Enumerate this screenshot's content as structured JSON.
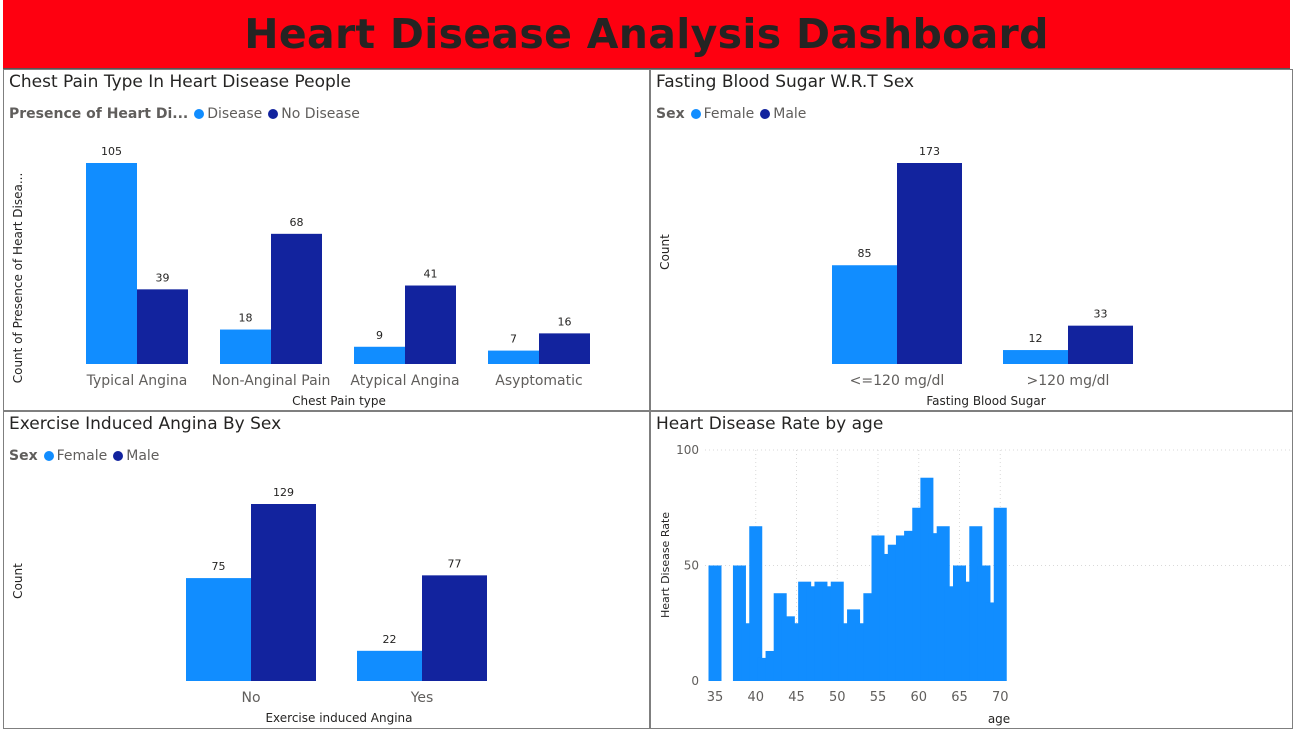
{
  "dashboard": {
    "title": "Heart Disease Analysis Dashboard"
  },
  "colors": {
    "light": "#118dff",
    "dark": "#12239e",
    "banner": "#fe0010"
  },
  "panels": {
    "chest": {
      "title": "Chest Pain Type In Heart Disease People",
      "legend_title": "Presence of Heart Di...",
      "legend": [
        "Disease",
        "No Disease"
      ]
    },
    "fbs": {
      "title": "Fasting Blood Sugar W.R.T Sex",
      "legend_title": "Sex",
      "legend": [
        "Female",
        "Male"
      ]
    },
    "angina": {
      "title": "Exercise Induced Angina By Sex",
      "legend_title": "Sex",
      "legend": [
        "Female",
        "Male"
      ]
    },
    "age": {
      "title": "Heart Disease Rate by age"
    }
  },
  "chart_data": [
    {
      "id": "chest",
      "type": "bar",
      "categories": [
        "Typical Angina",
        "Non-Anginal Pain",
        "Atypical Angina",
        "Asyptomatic"
      ],
      "series": [
        {
          "name": "Disease",
          "values": [
            105,
            18,
            9,
            7
          ]
        },
        {
          "name": "No Disease",
          "values": [
            39,
            68,
            41,
            16
          ]
        }
      ],
      "xlabel": "Chest Pain type",
      "ylabel": "Count of Presence of Heart Disea...",
      "ylim": [
        0,
        105
      ]
    },
    {
      "id": "fbs",
      "type": "bar",
      "categories": [
        "<=120 mg/dl",
        ">120 mg/dl"
      ],
      "series": [
        {
          "name": "Female",
          "values": [
            85,
            12
          ]
        },
        {
          "name": "Male",
          "values": [
            173,
            33
          ]
        }
      ],
      "xlabel": "Fasting Blood Sugar",
      "ylabel": "Count",
      "ylim": [
        0,
        173
      ]
    },
    {
      "id": "angina",
      "type": "bar",
      "categories": [
        "No",
        "Yes"
      ],
      "series": [
        {
          "name": "Female",
          "values": [
            75,
            22
          ]
        },
        {
          "name": "Male",
          "values": [
            129,
            77
          ]
        }
      ],
      "xlabel": "Exercise induced Angina",
      "ylabel": "Count",
      "ylim": [
        0,
        129
      ]
    },
    {
      "id": "age",
      "type": "bar",
      "x": [
        35,
        36,
        37,
        38,
        39,
        40,
        41,
        42,
        43,
        44,
        45,
        46,
        47,
        48,
        49,
        50,
        51,
        52,
        53,
        54,
        55,
        56,
        57,
        58,
        59,
        60,
        61,
        62,
        63,
        64,
        65,
        66,
        67,
        68,
        69,
        70
      ],
      "values": [
        50,
        0,
        0,
        50,
        25,
        67,
        10,
        13,
        38,
        28,
        25,
        43,
        41,
        43,
        41,
        43,
        25,
        31,
        25,
        38,
        63,
        55,
        59,
        63,
        65,
        75,
        88,
        64,
        67,
        41,
        50,
        43,
        67,
        50,
        34,
        75
      ],
      "xticks": [
        35,
        40,
        45,
        50,
        55,
        60,
        65,
        70
      ],
      "yticks": [
        0,
        50,
        100
      ],
      "xlabel": "age",
      "ylabel": "Heart Disease Rate",
      "ylim": [
        0,
        100
      ],
      "grid": true
    }
  ]
}
